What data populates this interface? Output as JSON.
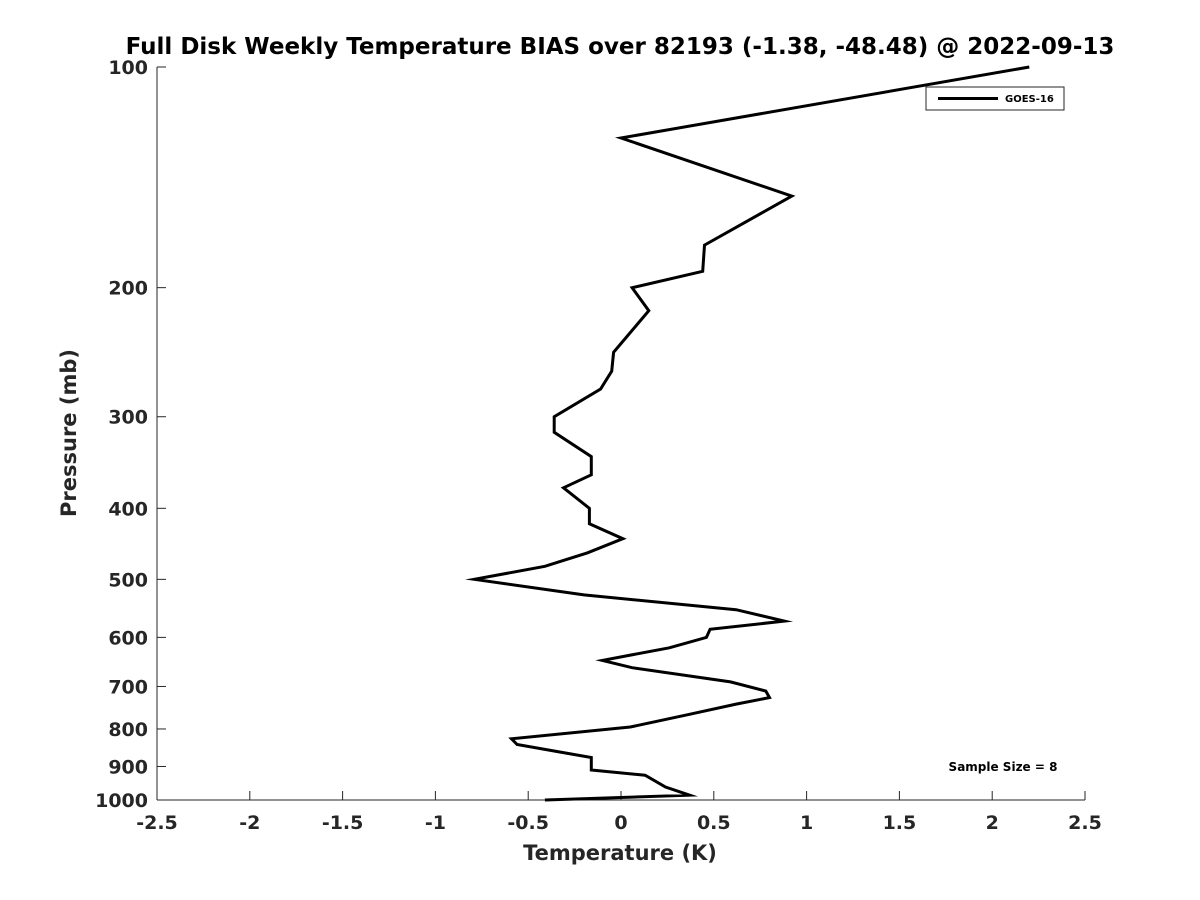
{
  "chart_data": {
    "type": "line",
    "title": "Full Disk Weekly Temperature BIAS over 82193 (-1.38, -48.48) @ 2022-09-13",
    "xlabel": "Temperature (K)",
    "ylabel": "Pressure (mb)",
    "xlim": [
      -2.5,
      2.5
    ],
    "ylim": [
      1000,
      100
    ],
    "y_scale": "log",
    "y_reversed": true,
    "x_ticks": [
      -2.5,
      -2,
      -1.5,
      -1,
      -0.5,
      0,
      0.5,
      1,
      1.5,
      2,
      2.5
    ],
    "x_tick_labels": [
      "-2.5",
      "-2",
      "-1.5",
      "-1",
      "-0.5",
      "0",
      "0.5",
      "1",
      "1.5",
      "2",
      "2.5"
    ],
    "y_ticks": [
      100,
      200,
      300,
      400,
      500,
      600,
      700,
      800,
      900,
      1000
    ],
    "y_tick_labels": [
      "100",
      "200",
      "300",
      "400",
      "500",
      "600",
      "700",
      "800",
      "900",
      "1000"
    ],
    "grid": false,
    "legend_position": "top-right",
    "annotation": "Sample Size = 8",
    "series": [
      {
        "name": "GOES-16",
        "color": "#000000",
        "points": [
          {
            "x": 2.2,
            "p": 100
          },
          {
            "x": 0.0,
            "p": 125
          },
          {
            "x": 0.92,
            "p": 150
          },
          {
            "x": 0.45,
            "p": 175
          },
          {
            "x": 0.44,
            "p": 190
          },
          {
            "x": 0.06,
            "p": 200
          },
          {
            "x": 0.15,
            "p": 215
          },
          {
            "x": -0.04,
            "p": 245
          },
          {
            "x": -0.05,
            "p": 260
          },
          {
            "x": -0.11,
            "p": 275
          },
          {
            "x": -0.36,
            "p": 300
          },
          {
            "x": -0.36,
            "p": 315
          },
          {
            "x": -0.16,
            "p": 340
          },
          {
            "x": -0.16,
            "p": 360
          },
          {
            "x": -0.31,
            "p": 375
          },
          {
            "x": -0.17,
            "p": 400
          },
          {
            "x": -0.17,
            "p": 420
          },
          {
            "x": 0.01,
            "p": 440
          },
          {
            "x": -0.18,
            "p": 460
          },
          {
            "x": -0.41,
            "p": 480
          },
          {
            "x": -0.79,
            "p": 500
          },
          {
            "x": -0.2,
            "p": 525
          },
          {
            "x": 0.62,
            "p": 550
          },
          {
            "x": 0.88,
            "p": 570
          },
          {
            "x": 0.48,
            "p": 585
          },
          {
            "x": 0.46,
            "p": 600
          },
          {
            "x": 0.26,
            "p": 620
          },
          {
            "x": -0.1,
            "p": 645
          },
          {
            "x": 0.06,
            "p": 660
          },
          {
            "x": 0.59,
            "p": 690
          },
          {
            "x": 0.78,
            "p": 710
          },
          {
            "x": 0.8,
            "p": 725
          },
          {
            "x": 0.62,
            "p": 740
          },
          {
            "x": 0.36,
            "p": 765
          },
          {
            "x": 0.05,
            "p": 795
          },
          {
            "x": -0.59,
            "p": 825
          },
          {
            "x": -0.56,
            "p": 840
          },
          {
            "x": -0.33,
            "p": 860
          },
          {
            "x": -0.16,
            "p": 875
          },
          {
            "x": -0.16,
            "p": 910
          },
          {
            "x": 0.13,
            "p": 925
          },
          {
            "x": 0.24,
            "p": 960
          },
          {
            "x": 0.37,
            "p": 985
          },
          {
            "x": -0.41,
            "p": 1000
          }
        ]
      }
    ]
  }
}
